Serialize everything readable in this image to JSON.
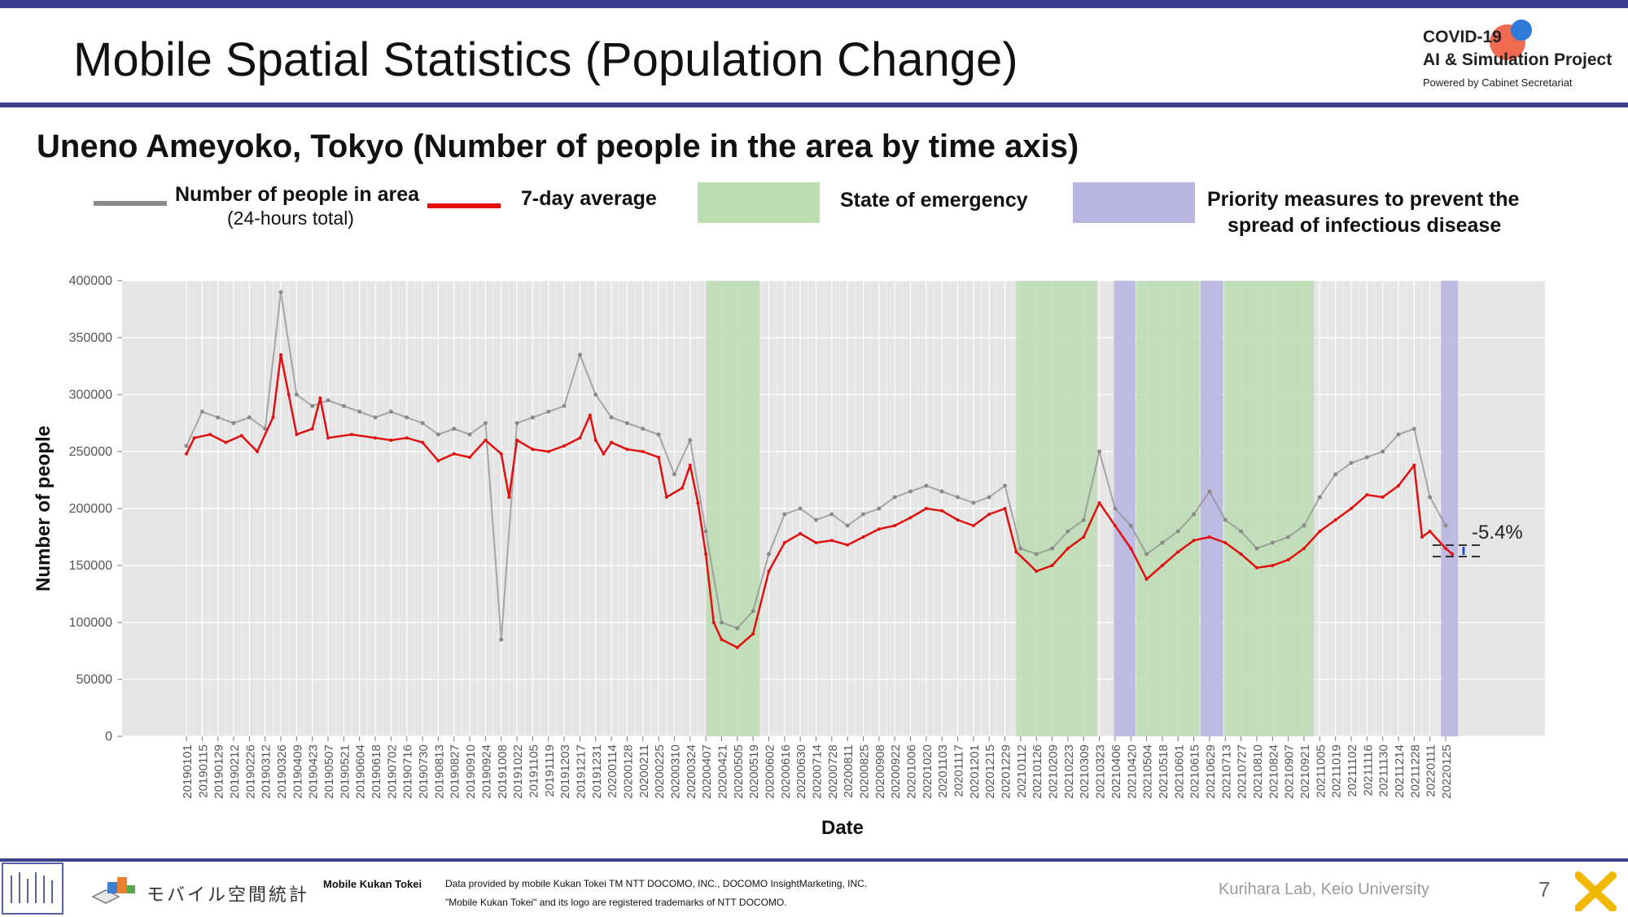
{
  "header": {
    "title": "Mobile Spatial Statistics (Population Change)",
    "brand_line1": "COVID-19",
    "brand_line2": "AI & Simulation Project",
    "brand_line3": "Powered by Cabinet Secretariat"
  },
  "subtitle": "Uneno Ameyoko, Tokyo (Number of people in the area by time axis)",
  "legend": {
    "people_label": "Number of people in area",
    "people_sub": "(24-hours total)",
    "avg_label": "7-day average",
    "emergency_label": "State of emergency",
    "priority_line1": "Priority measures to prevent the",
    "priority_line2": "spread of infectious disease",
    "colors": {
      "daily": "#8a8a8a",
      "avg": "#e01010",
      "emergency": "#bcdcb2",
      "priority": "#b9b6e2"
    }
  },
  "chart_data": {
    "type": "line",
    "xlabel": "Date",
    "ylabel": "Number of people",
    "ylim": [
      0,
      400000
    ],
    "yticks": [
      0,
      50000,
      100000,
      150000,
      200000,
      250000,
      300000,
      350000,
      400000
    ],
    "grid": true,
    "annotation": "-5.4%",
    "x_tick_labels": [
      "20190101",
      "20190115",
      "20190129",
      "20190212",
      "20190226",
      "20190312",
      "20190326",
      "20190409",
      "20190423",
      "20190507",
      "20190521",
      "20190604",
      "20190618",
      "20190702",
      "20190716",
      "20190730",
      "20190813",
      "20190827",
      "20190910",
      "20190924",
      "20191008",
      "20191022",
      "20191105",
      "20191119",
      "20191203",
      "20191217",
      "20191231",
      "20200114",
      "20200128",
      "20200211",
      "20200225",
      "20200310",
      "20200324",
      "20200407",
      "20200421",
      "20200505",
      "20200519",
      "20200602",
      "20200616",
      "20200630",
      "20200714",
      "20200728",
      "20200811",
      "20200825",
      "20200908",
      "20200922",
      "20201006",
      "20201020",
      "20201103",
      "20201117",
      "20201201",
      "20201215",
      "20201229",
      "20210112",
      "20210126",
      "20210209",
      "20210223",
      "20210309",
      "20210323",
      "20210406",
      "20210420",
      "20210504",
      "20210518",
      "20210601",
      "20210615",
      "20210629",
      "20210713",
      "20210727",
      "20210810",
      "20210824",
      "20210907",
      "20210921",
      "20211005",
      "20211019",
      "20211102",
      "20211116",
      "20211130",
      "20211214",
      "20211228",
      "20220111",
      "20220125"
    ],
    "emergency_periods": [
      [
        "20200407",
        "20200525"
      ],
      [
        "20210108",
        "20210321"
      ],
      [
        "20210425",
        "20210620"
      ],
      [
        "20210712",
        "20210930"
      ]
    ],
    "priority_periods": [
      [
        "20210405",
        "20210424"
      ],
      [
        "20210621",
        "20210711"
      ],
      [
        "20220121",
        "20220205"
      ]
    ],
    "series": [
      {
        "name": "7-day average",
        "points": [
          [
            "20190101",
            248000
          ],
          [
            "20190108",
            262000
          ],
          [
            "20190122",
            265000
          ],
          [
            "20190205",
            258000
          ],
          [
            "20190219",
            264000
          ],
          [
            "20190305",
            250000
          ],
          [
            "20190319",
            280000
          ],
          [
            "20190326",
            335000
          ],
          [
            "20190402",
            300000
          ],
          [
            "20190409",
            265000
          ],
          [
            "20190423",
            270000
          ],
          [
            "20190430",
            297000
          ],
          [
            "20190507",
            262000
          ],
          [
            "20190528",
            265000
          ],
          [
            "20190618",
            262000
          ],
          [
            "20190702",
            260000
          ],
          [
            "20190716",
            262000
          ],
          [
            "20190730",
            258000
          ],
          [
            "20190813",
            242000
          ],
          [
            "20190827",
            248000
          ],
          [
            "20190910",
            245000
          ],
          [
            "20190924",
            260000
          ],
          [
            "20191008",
            248000
          ],
          [
            "20191015",
            210000
          ],
          [
            "20191022",
            260000
          ],
          [
            "20191105",
            252000
          ],
          [
            "20191119",
            250000
          ],
          [
            "20191203",
            255000
          ],
          [
            "20191217",
            262000
          ],
          [
            "20191226",
            282000
          ],
          [
            "20191231",
            260000
          ],
          [
            "20200107",
            248000
          ],
          [
            "20200114",
            258000
          ],
          [
            "20200128",
            252000
          ],
          [
            "20200211",
            250000
          ],
          [
            "20200225",
            245000
          ],
          [
            "20200303",
            210000
          ],
          [
            "20200317",
            218000
          ],
          [
            "20200324",
            238000
          ],
          [
            "20200331",
            205000
          ],
          [
            "20200407",
            160000
          ],
          [
            "20200414",
            100000
          ],
          [
            "20200421",
            85000
          ],
          [
            "20200505",
            78000
          ],
          [
            "20200519",
            90000
          ],
          [
            "20200602",
            145000
          ],
          [
            "20200616",
            170000
          ],
          [
            "20200630",
            178000
          ],
          [
            "20200714",
            170000
          ],
          [
            "20200728",
            172000
          ],
          [
            "20200811",
            168000
          ],
          [
            "20200825",
            175000
          ],
          [
            "20200908",
            182000
          ],
          [
            "20200922",
            185000
          ],
          [
            "20201006",
            192000
          ],
          [
            "20201020",
            200000
          ],
          [
            "20201103",
            198000
          ],
          [
            "20201117",
            190000
          ],
          [
            "20201201",
            185000
          ],
          [
            "20201215",
            195000
          ],
          [
            "20201229",
            200000
          ],
          [
            "20210108",
            162000
          ],
          [
            "20210126",
            145000
          ],
          [
            "20210209",
            150000
          ],
          [
            "20210223",
            165000
          ],
          [
            "20210309",
            175000
          ],
          [
            "20210323",
            205000
          ],
          [
            "20210406",
            185000
          ],
          [
            "20210420",
            165000
          ],
          [
            "20210504",
            138000
          ],
          [
            "20210518",
            150000
          ],
          [
            "20210601",
            162000
          ],
          [
            "20210615",
            172000
          ],
          [
            "20210629",
            175000
          ],
          [
            "20210713",
            170000
          ],
          [
            "20210727",
            160000
          ],
          [
            "20210810",
            148000
          ],
          [
            "20210824",
            150000
          ],
          [
            "20210907",
            155000
          ],
          [
            "20210921",
            165000
          ],
          [
            "20211005",
            180000
          ],
          [
            "20211019",
            190000
          ],
          [
            "20211102",
            200000
          ],
          [
            "20211116",
            212000
          ],
          [
            "20211130",
            210000
          ],
          [
            "20211214",
            220000
          ],
          [
            "20211228",
            238000
          ],
          [
            "20220104",
            175000
          ],
          [
            "20220111",
            180000
          ],
          [
            "20220125",
            165000
          ],
          [
            "20220131",
            160000
          ]
        ]
      },
      {
        "name": "Number of people in area",
        "points": [
          [
            "20190101",
            255000
          ],
          [
            "20190115",
            285000
          ],
          [
            "20190129",
            280000
          ],
          [
            "20190212",
            275000
          ],
          [
            "20190226",
            280000
          ],
          [
            "20190312",
            270000
          ],
          [
            "20190326",
            390000
          ],
          [
            "20190409",
            300000
          ],
          [
            "20190423",
            290000
          ],
          [
            "20190507",
            295000
          ],
          [
            "20190521",
            290000
          ],
          [
            "20190604",
            285000
          ],
          [
            "20190618",
            280000
          ],
          [
            "20190702",
            285000
          ],
          [
            "20190716",
            280000
          ],
          [
            "20190730",
            275000
          ],
          [
            "20190813",
            265000
          ],
          [
            "20190827",
            270000
          ],
          [
            "20190910",
            265000
          ],
          [
            "20190924",
            275000
          ],
          [
            "20191008",
            85000
          ],
          [
            "20191022",
            275000
          ],
          [
            "20191105",
            280000
          ],
          [
            "20191119",
            285000
          ],
          [
            "20191203",
            290000
          ],
          [
            "20191217",
            335000
          ],
          [
            "20191231",
            300000
          ],
          [
            "20200114",
            280000
          ],
          [
            "20200128",
            275000
          ],
          [
            "20200211",
            270000
          ],
          [
            "20200225",
            265000
          ],
          [
            "20200310",
            230000
          ],
          [
            "20200324",
            260000
          ],
          [
            "20200407",
            180000
          ],
          [
            "20200421",
            100000
          ],
          [
            "20200505",
            95000
          ],
          [
            "20200519",
            110000
          ],
          [
            "20200602",
            160000
          ],
          [
            "20200616",
            195000
          ],
          [
            "20200630",
            200000
          ],
          [
            "20200714",
            190000
          ],
          [
            "20200728",
            195000
          ],
          [
            "20200811",
            185000
          ],
          [
            "20200825",
            195000
          ],
          [
            "20200908",
            200000
          ],
          [
            "20200922",
            210000
          ],
          [
            "20201006",
            215000
          ],
          [
            "20201020",
            220000
          ],
          [
            "20201103",
            215000
          ],
          [
            "20201117",
            210000
          ],
          [
            "20201201",
            205000
          ],
          [
            "20201215",
            210000
          ],
          [
            "20201229",
            220000
          ],
          [
            "20210112",
            165000
          ],
          [
            "20210126",
            160000
          ],
          [
            "20210209",
            165000
          ],
          [
            "20210223",
            180000
          ],
          [
            "20210309",
            190000
          ],
          [
            "20210323",
            250000
          ],
          [
            "20210406",
            200000
          ],
          [
            "20210420",
            185000
          ],
          [
            "20210504",
            160000
          ],
          [
            "20210518",
            170000
          ],
          [
            "20210601",
            180000
          ],
          [
            "20210615",
            195000
          ],
          [
            "20210629",
            215000
          ],
          [
            "20210713",
            190000
          ],
          [
            "20210727",
            180000
          ],
          [
            "20210810",
            165000
          ],
          [
            "20210824",
            170000
          ],
          [
            "20210907",
            175000
          ],
          [
            "20210921",
            185000
          ],
          [
            "20211005",
            210000
          ],
          [
            "20211019",
            230000
          ],
          [
            "20211102",
            240000
          ],
          [
            "20211116",
            245000
          ],
          [
            "20211130",
            250000
          ],
          [
            "20211214",
            265000
          ],
          [
            "20211228",
            270000
          ],
          [
            "20220111",
            210000
          ],
          [
            "20220125",
            185000
          ]
        ]
      }
    ]
  },
  "footer": {
    "logo_text": "モバイル空間統計",
    "product_name": "Mobile Kukan Tokei",
    "credit_line1": "Data provided by mobile Kukan Tokei TM NTT DOCOMO, INC., DOCOMO InsightMarketing, INC.",
    "credit_line2": "\"Mobile Kukan Tokei\" and its logo are registered trademarks of NTT DOCOMO.",
    "lab": "Kurihara Lab, Keio University",
    "page_number": "7"
  }
}
